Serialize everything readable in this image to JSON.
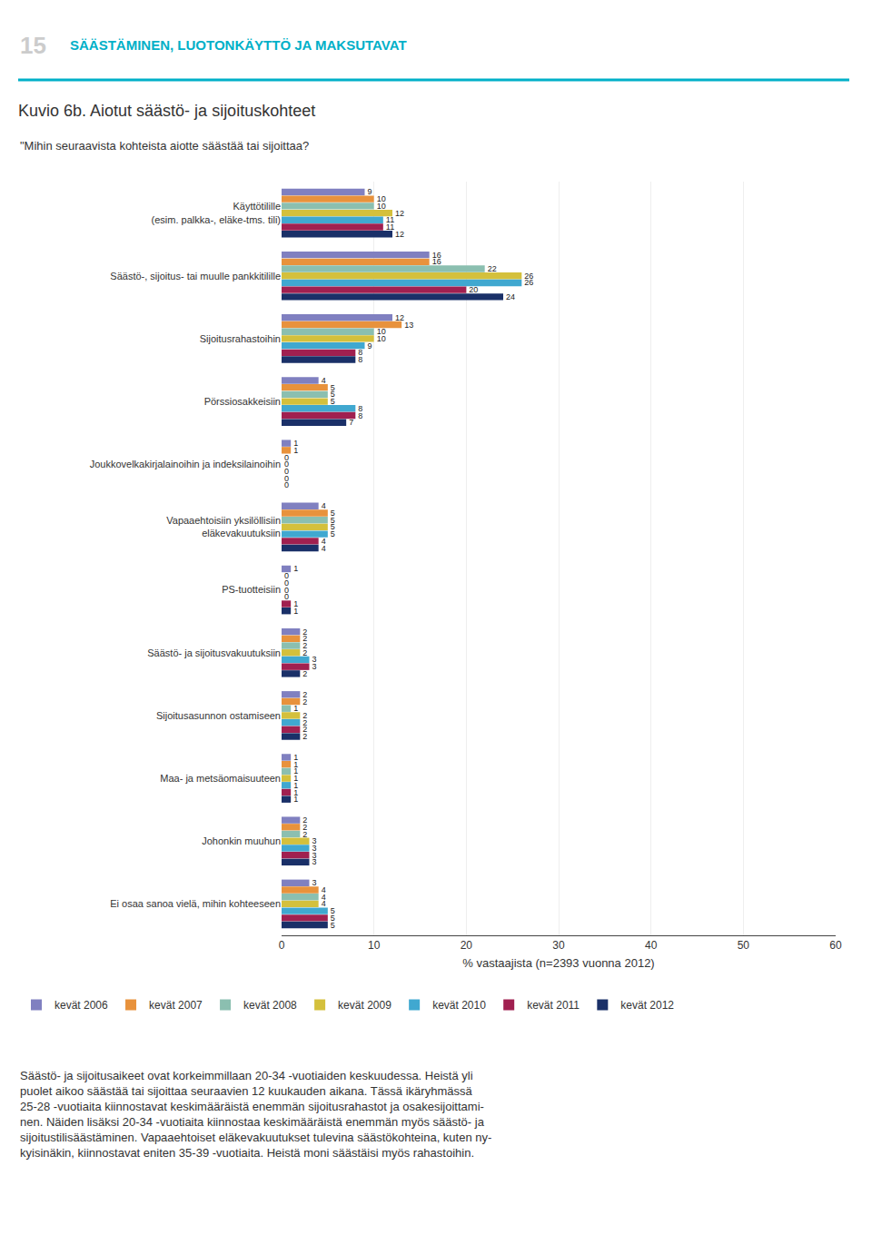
{
  "chart_data": {
    "type": "bar",
    "orientation": "horizontal",
    "title": "Kuvio 6b. Aiotut säästö- ja sijoituskohteet",
    "subtitle": "\"Mihin seuraavista kohteista aiotte säästää tai sijoittaa?",
    "xlabel": "% vastaajista (n=2393 vuonna 2012)",
    "annotations": [
      "15",
      "SÄÄSTÄMINEN, LUOTONKÄYTTÖ JA MAKSUTAVAT",
      "Säästö- ja sijoitusaikeet ovat korkeimmillaan 20-34 -vuotiaiden keskuudessa. Heistä yli\npuolet aikoo säästää tai sijoittaa seuraavien 12 kuukauden aikana. Tässä ikäryhmässä\n25-28 -vuotiaita kiinnostavat keskimääräistä enemmän sijoitusrahastot ja osakesijoittami-\nnen. Näiden lisäksi 20-34 -vuotiaita kiinnostaa keskimääräistä enemmän myös säästö- ja\nsijoitustilisäästäminen. Vapaaehtoiset eläkevakuutukset tulevina säästökohteina, kuten ny-\nkyisinäkin, kiinnostavat eniten 35-39 -vuotiaita. Heistä moni säästäisi myös rahastoihin."
    ],
    "categories": [
      "Käyttötilille\n(esim. palkka-, eläke-tms. tili)",
      "Säästö-, sijoitus- tai muulle pankkitilille",
      "Sijoitusrahastoihin",
      "Pörssiosakkeisiin",
      "Joukkovelkakirjalainoihin ja indeksilainoihin",
      "Vapaaehtoisiin yksilöllisiin\neläkevakuutuksiin",
      "PS-tuotteisiin",
      "Säästö- ja sijoitusvakuutuksiin",
      "Sijoitusasunnon ostamiseen",
      "Maa- ja metsäomaisuuteen",
      "Johonkin muuhun",
      "Ei osaa sanoa vielä, mihin kohteeseen"
    ],
    "series": [
      {
        "name": "kevät 2006",
        "color": "#8080C0",
        "values": [
          9,
          16,
          12,
          4,
          1,
          4,
          1,
          2,
          2,
          1,
          2,
          3
        ]
      },
      {
        "name": "kevät 2007",
        "color": "#E8923C",
        "values": [
          10,
          16,
          13,
          5,
          1,
          5,
          0,
          2,
          2,
          1,
          2,
          4
        ]
      },
      {
        "name": "kevät 2008",
        "color": "#8BBFB0",
        "values": [
          10,
          22,
          10,
          5,
          0,
          5,
          0,
          2,
          1,
          1,
          2,
          4
        ]
      },
      {
        "name": "kevät 2009",
        "color": "#D4C03C",
        "values": [
          12,
          26,
          10,
          5,
          0,
          5,
          0,
          2,
          2,
          1,
          3,
          4
        ]
      },
      {
        "name": "kevät 2010",
        "color": "#40A8D0",
        "values": [
          11,
          26,
          9,
          8,
          0,
          5,
          0,
          3,
          2,
          1,
          3,
          5
        ]
      },
      {
        "name": "kevät 2011",
        "color": "#A02050",
        "values": [
          11,
          20,
          8,
          8,
          0,
          4,
          1,
          3,
          2,
          1,
          3,
          5
        ]
      },
      {
        "name": "kevät 2012",
        "color": "#1A3068",
        "values": [
          12,
          24,
          8,
          7,
          0,
          4,
          1,
          2,
          2,
          1,
          3,
          5
        ]
      }
    ],
    "xlim": [
      0,
      60
    ],
    "xticks": [
      0,
      10,
      20,
      30,
      40,
      50,
      60
    ],
    "grid": true,
    "data_labels": true,
    "legend": "bottom"
  }
}
